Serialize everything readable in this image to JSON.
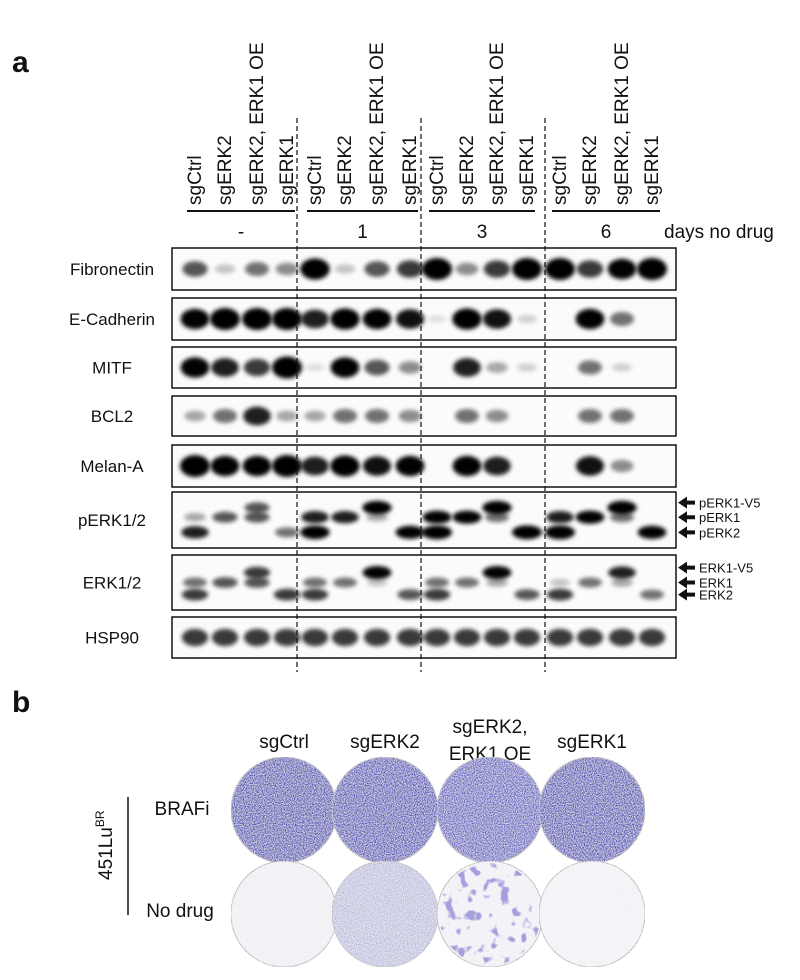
{
  "panel_a": {
    "label": "a",
    "groups": [
      {
        "label": "-",
        "lanes": [
          "sgCtrl",
          "sgERK2",
          "sgERK2, ERK1 OE",
          "sgERK1"
        ]
      },
      {
        "label": "1",
        "lanes": [
          "sgCtrl",
          "sgERK2",
          "sgERK2, ERK1 OE",
          "sgERK1"
        ]
      },
      {
        "label": "3",
        "lanes": [
          "sgCtrl",
          "sgERK2",
          "sgERK2, ERK1 OE",
          "sgERK1"
        ]
      },
      {
        "label": "6",
        "lanes": [
          "sgCtrl",
          "sgERK2",
          "sgERK2, ERK1 OE",
          "sgERK1"
        ]
      }
    ],
    "time_label": "days no drug",
    "blots": [
      {
        "label": "Fibronectin"
      },
      {
        "label": "E-Cadherin"
      },
      {
        "label": "MITF"
      },
      {
        "label": "BCL2"
      },
      {
        "label": "Melan-A"
      },
      {
        "label": "pERK1/2",
        "markers": [
          "pERK1-V5",
          "pERK1",
          "pERK2"
        ]
      },
      {
        "label": "ERK1/2",
        "markers": [
          "ERK1-V5",
          "ERK1",
          "ERK2"
        ]
      },
      {
        "label": "HSP90"
      }
    ]
  },
  "panel_b": {
    "label": "b",
    "columns": [
      [
        "sgCtrl"
      ],
      [
        "sgERK2"
      ],
      [
        "sgERK2,",
        "ERK1 OE"
      ],
      [
        "sgERK1"
      ]
    ],
    "rows": [
      "BRAFi",
      "No drug"
    ],
    "cell_line": {
      "name": "451Lu",
      "superscript": "BR"
    }
  }
}
